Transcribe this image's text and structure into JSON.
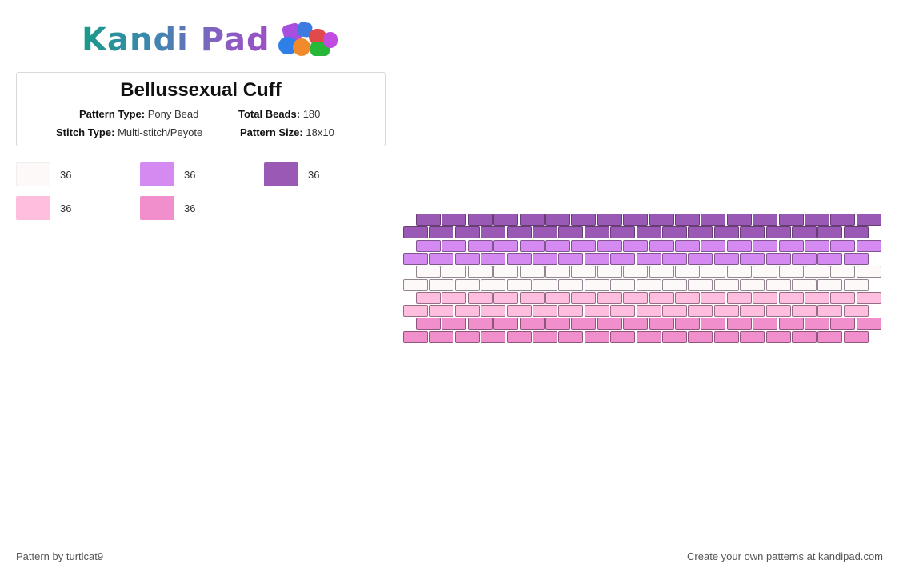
{
  "header": {
    "logo_text": "Kandi Pad",
    "logo_icon": "bead-pile-icon"
  },
  "pattern": {
    "title": "Bellussexual Cuff",
    "pattern_type_label": "Pattern Type:",
    "pattern_type": "Pony Bead",
    "total_beads_label": "Total Beads:",
    "total_beads": "180",
    "stitch_type_label": "Stitch Type:",
    "stitch_type": "Multi-stitch/Peyote",
    "pattern_size_label": "Pattern Size:",
    "pattern_size": "18x10"
  },
  "palette": [
    {
      "color": "#fdf9f9",
      "count": "36"
    },
    {
      "color": "#d48af0",
      "count": "36"
    },
    {
      "color": "#9b59b6",
      "count": "36"
    },
    {
      "color": "#ffbedd",
      "count": "36"
    },
    {
      "color": "#f18fcd",
      "count": "36"
    }
  ],
  "grid": {
    "columns": 18,
    "row_colors": [
      "#9b59b6",
      "#9b59b6",
      "#d48af0",
      "#d48af0",
      "#fdf9f9",
      "#fdf9f9",
      "#ffbedd",
      "#ffbedd",
      "#f18fcd",
      "#f18fcd"
    ]
  },
  "footer": {
    "author": "Pattern by turtlcat9",
    "cta": "Create your own patterns at kandipad.com"
  }
}
